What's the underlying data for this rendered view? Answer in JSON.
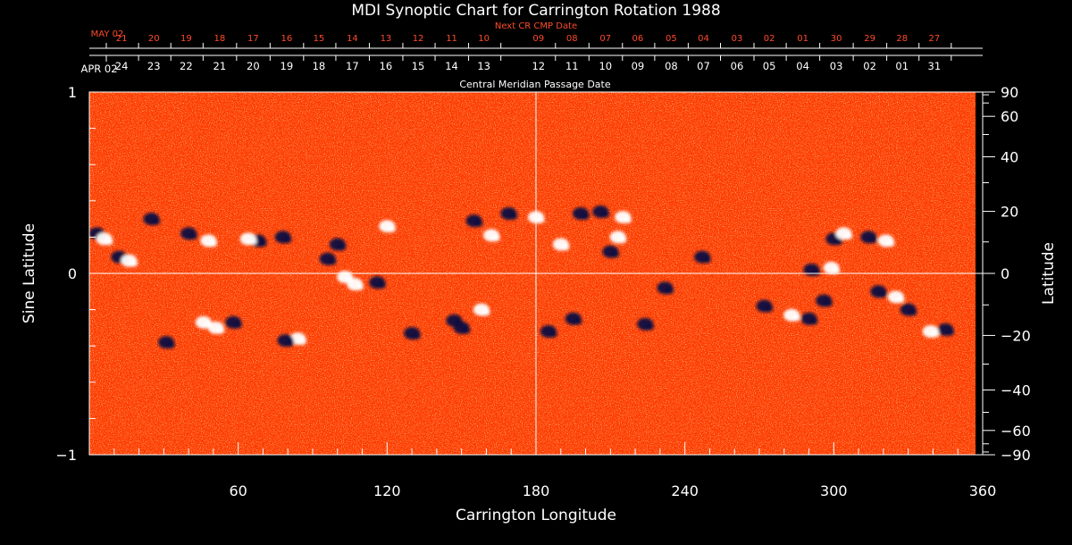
{
  "chart_data": {
    "type": "heatmap",
    "title": "MDI Synoptic Chart for Carrington Rotation 1988",
    "xlabel": "Carrington Longitude",
    "ylabel_left": "Sine Latitude",
    "ylabel_right": "Latitude",
    "xlim": [
      0,
      360
    ],
    "ylim": [
      -1,
      1
    ],
    "x_ticks": [
      60,
      120,
      180,
      240,
      300,
      360
    ],
    "x_minor_step": 10,
    "y_left_ticks": [
      {
        "v": 1,
        "label": "1"
      },
      {
        "v": 0,
        "label": "0"
      },
      {
        "v": -1,
        "label": "−1"
      }
    ],
    "y_left_minor": [
      0.8,
      0.6,
      0.4,
      0.2,
      -0.2,
      -0.4,
      -0.6,
      -0.8
    ],
    "y_right_ticks": [
      {
        "lat": 90,
        "label": "90"
      },
      {
        "lat": 60,
        "label": "60"
      },
      {
        "lat": 40,
        "label": "40"
      },
      {
        "lat": 20,
        "label": "20"
      },
      {
        "lat": 0,
        "label": "0"
      },
      {
        "lat": -20,
        "label": "−20"
      },
      {
        "lat": -40,
        "label": "−40"
      },
      {
        "lat": -60,
        "label": "−60"
      },
      {
        "lat": -90,
        "label": "−90"
      }
    ],
    "y_right_minor": [
      80,
      70,
      50,
      30,
      10,
      -10,
      -30,
      -50,
      -70,
      -80
    ],
    "top_axis_title": "Central Meridian Passage Date",
    "top_axis_start_label": "APR 02",
    "top_axis_dates": [
      {
        "lon": 13,
        "label": "24"
      },
      {
        "lon": 26,
        "label": "23"
      },
      {
        "lon": 39,
        "label": "22"
      },
      {
        "lon": 52.5,
        "label": "21"
      },
      {
        "lon": 66,
        "label": "20"
      },
      {
        "lon": 79.5,
        "label": "19"
      },
      {
        "lon": 92.5,
        "label": "18"
      },
      {
        "lon": 106,
        "label": "17"
      },
      {
        "lon": 119.5,
        "label": "16"
      },
      {
        "lon": 132.5,
        "label": "15"
      },
      {
        "lon": 146,
        "label": "14"
      },
      {
        "lon": 159,
        "label": "13"
      },
      {
        "lon": 181,
        "label": "12"
      },
      {
        "lon": 194.5,
        "label": "11"
      },
      {
        "lon": 208,
        "label": "10"
      },
      {
        "lon": 221,
        "label": "09"
      },
      {
        "lon": 234.5,
        "label": "08"
      },
      {
        "lon": 247.5,
        "label": "07"
      },
      {
        "lon": 261,
        "label": "06"
      },
      {
        "lon": 274,
        "label": "05"
      },
      {
        "lon": 287.5,
        "label": "04"
      },
      {
        "lon": 301,
        "label": "03"
      },
      {
        "lon": 314.5,
        "label": "02"
      },
      {
        "lon": 327.5,
        "label": "01"
      },
      {
        "lon": 340.5,
        "label": "31"
      }
    ],
    "next_cr_title": "Next CR CMP Date",
    "next_cr_start_label": "MAY 02",
    "next_cr_dates": [
      {
        "lon": 13,
        "label": "21"
      },
      {
        "lon": 26,
        "label": "20"
      },
      {
        "lon": 39,
        "label": "19"
      },
      {
        "lon": 52.5,
        "label": "18"
      },
      {
        "lon": 66,
        "label": "17"
      },
      {
        "lon": 79.5,
        "label": "16"
      },
      {
        "lon": 92.5,
        "label": "15"
      },
      {
        "lon": 106,
        "label": "14"
      },
      {
        "lon": 119.5,
        "label": "13"
      },
      {
        "lon": 132.5,
        "label": "12"
      },
      {
        "lon": 146,
        "label": "11"
      },
      {
        "lon": 159,
        "label": "10"
      },
      {
        "lon": 181,
        "label": "09"
      },
      {
        "lon": 194.5,
        "label": "08"
      },
      {
        "lon": 208,
        "label": "07"
      },
      {
        "lon": 221,
        "label": "06"
      },
      {
        "lon": 234.5,
        "label": "05"
      },
      {
        "lon": 247.5,
        "label": "04"
      },
      {
        "lon": 261,
        "label": "03"
      },
      {
        "lon": 274,
        "label": "02"
      },
      {
        "lon": 287.5,
        "label": "01"
      },
      {
        "lon": 301,
        "label": "30"
      },
      {
        "lon": 314.5,
        "label": "29"
      },
      {
        "lon": 327.5,
        "label": "28"
      },
      {
        "lon": 340.5,
        "label": "27"
      }
    ],
    "guide_lines": {
      "longitude": 180,
      "sine_latitude": 0
    },
    "colors": {
      "background": "#ff3c00",
      "positive": "#ffffff",
      "negative": "#0b0a40",
      "axes": "#ffffff",
      "next_cr": "#ff4a2a"
    },
    "active_regions": [
      {
        "lon": 3,
        "slat": 0.22,
        "sign": "neg"
      },
      {
        "lon": 6,
        "slat": 0.19,
        "sign": "pos"
      },
      {
        "lon": 12,
        "slat": 0.09,
        "sign": "neg"
      },
      {
        "lon": 16,
        "slat": 0.07,
        "sign": "pos"
      },
      {
        "lon": 25,
        "slat": 0.3,
        "sign": "neg"
      },
      {
        "lon": 40,
        "slat": 0.22,
        "sign": "neg"
      },
      {
        "lon": 48,
        "slat": 0.18,
        "sign": "pos"
      },
      {
        "lon": 68,
        "slat": 0.18,
        "sign": "neg"
      },
      {
        "lon": 64,
        "slat": 0.19,
        "sign": "pos"
      },
      {
        "lon": 78,
        "slat": 0.2,
        "sign": "neg"
      },
      {
        "lon": 100,
        "slat": 0.16,
        "sign": "neg"
      },
      {
        "lon": 107,
        "slat": -0.06,
        "sign": "pos"
      },
      {
        "lon": 116,
        "slat": -0.05,
        "sign": "neg"
      },
      {
        "lon": 103,
        "slat": -0.02,
        "sign": "pos"
      },
      {
        "lon": 58,
        "slat": -0.27,
        "sign": "neg"
      },
      {
        "lon": 51,
        "slat": -0.3,
        "sign": "pos"
      },
      {
        "lon": 46,
        "slat": -0.27,
        "sign": "pos"
      },
      {
        "lon": 31,
        "slat": -0.38,
        "sign": "neg"
      },
      {
        "lon": 84,
        "slat": -0.36,
        "sign": "pos"
      },
      {
        "lon": 79,
        "slat": -0.37,
        "sign": "neg"
      },
      {
        "lon": 155,
        "slat": 0.29,
        "sign": "neg"
      },
      {
        "lon": 162,
        "slat": 0.21,
        "sign": "pos"
      },
      {
        "lon": 169,
        "slat": 0.33,
        "sign": "neg"
      },
      {
        "lon": 180,
        "slat": 0.31,
        "sign": "pos"
      },
      {
        "lon": 147,
        "slat": -0.26,
        "sign": "neg"
      },
      {
        "lon": 158,
        "slat": -0.2,
        "sign": "pos"
      },
      {
        "lon": 150,
        "slat": -0.3,
        "sign": "neg"
      },
      {
        "lon": 130,
        "slat": -0.33,
        "sign": "neg"
      },
      {
        "lon": 206,
        "slat": 0.34,
        "sign": "neg"
      },
      {
        "lon": 215,
        "slat": 0.31,
        "sign": "pos"
      },
      {
        "lon": 198,
        "slat": 0.33,
        "sign": "neg"
      },
      {
        "lon": 210,
        "slat": 0.12,
        "sign": "neg"
      },
      {
        "lon": 213,
        "slat": 0.2,
        "sign": "pos"
      },
      {
        "lon": 190,
        "slat": 0.16,
        "sign": "pos"
      },
      {
        "lon": 195,
        "slat": -0.25,
        "sign": "neg"
      },
      {
        "lon": 185,
        "slat": -0.32,
        "sign": "neg"
      },
      {
        "lon": 224,
        "slat": -0.28,
        "sign": "neg"
      },
      {
        "lon": 247,
        "slat": 0.09,
        "sign": "neg"
      },
      {
        "lon": 291,
        "slat": 0.02,
        "sign": "neg"
      },
      {
        "lon": 299,
        "slat": 0.03,
        "sign": "pos"
      },
      {
        "lon": 300,
        "slat": 0.19,
        "sign": "neg"
      },
      {
        "lon": 304,
        "slat": 0.22,
        "sign": "pos"
      },
      {
        "lon": 314,
        "slat": 0.2,
        "sign": "neg"
      },
      {
        "lon": 321,
        "slat": 0.18,
        "sign": "pos"
      },
      {
        "lon": 283,
        "slat": -0.23,
        "sign": "pos"
      },
      {
        "lon": 290,
        "slat": -0.25,
        "sign": "neg"
      },
      {
        "lon": 296,
        "slat": -0.15,
        "sign": "neg"
      },
      {
        "lon": 318,
        "slat": -0.1,
        "sign": "neg"
      },
      {
        "lon": 325,
        "slat": -0.13,
        "sign": "pos"
      },
      {
        "lon": 345,
        "slat": -0.31,
        "sign": "neg"
      },
      {
        "lon": 339,
        "slat": -0.32,
        "sign": "pos"
      },
      {
        "lon": 330,
        "slat": -0.2,
        "sign": "neg"
      },
      {
        "lon": 272,
        "slat": -0.18,
        "sign": "neg"
      },
      {
        "lon": 232,
        "slat": -0.08,
        "sign": "neg"
      },
      {
        "lon": 120,
        "slat": 0.26,
        "sign": "pos"
      },
      {
        "lon": 96,
        "slat": 0.08,
        "sign": "neg"
      }
    ]
  }
}
